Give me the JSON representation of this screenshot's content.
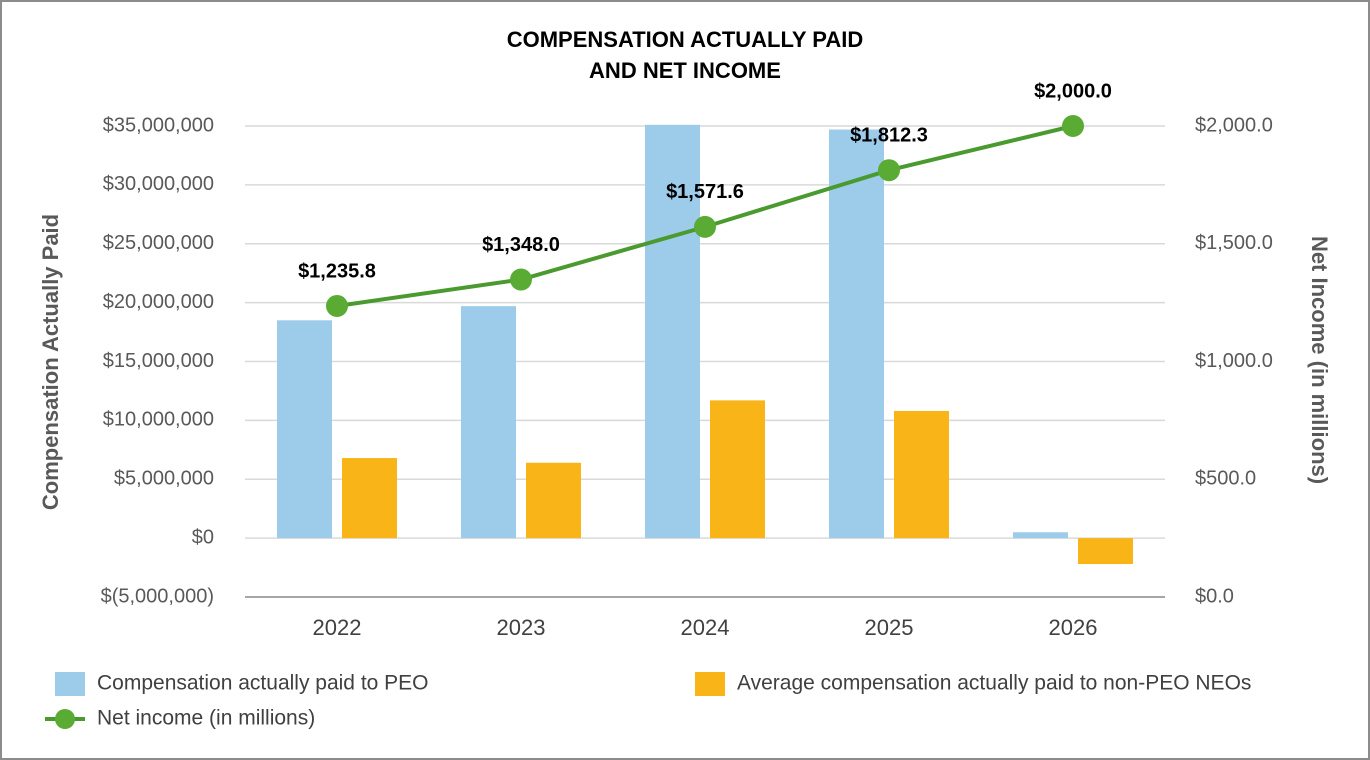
{
  "chart_data": {
    "type": "bar",
    "title": [
      "COMPENSATION ACTUALLY PAID",
      "AND NET INCOME"
    ],
    "y_label": "Compensation Actually Paid",
    "y2_label": "Net Income (in millions)",
    "categories": [
      "2022",
      "2023",
      "2024",
      "2025",
      "2026"
    ],
    "series": [
      {
        "name": "Compensation actually paid to PEO",
        "type": "bar",
        "color": "#9dcbea",
        "values": [
          18500000,
          19700000,
          35100000,
          34700000,
          500000
        ]
      },
      {
        "name": "Average compensation actually paid to non-PEO NEOs",
        "type": "bar",
        "color": "#f9b517",
        "values": [
          6800000,
          6400000,
          11700000,
          10800000,
          -2200000
        ]
      },
      {
        "name": "Net income (in millions)",
        "type": "line",
        "axis": "y2",
        "color": "#4a9a2f",
        "values": [
          1235.8,
          1348.0,
          1571.6,
          1812.3,
          2000.0
        ],
        "value_labels": [
          "$1,235.8",
          "$1,348.0",
          "$1,571.6",
          "$1,812.3",
          "$2,000.0"
        ]
      }
    ],
    "ylim": [
      -5000000,
      35000000
    ],
    "yticks": [
      {
        "value": -5000000,
        "label": "$(5,000,000)"
      },
      {
        "value": 0,
        "label": "$0"
      },
      {
        "value": 5000000,
        "label": "$5,000,000"
      },
      {
        "value": 10000000,
        "label": "$10,000,000"
      },
      {
        "value": 15000000,
        "label": "$15,000,000"
      },
      {
        "value": 20000000,
        "label": "$20,000,000"
      },
      {
        "value": 25000000,
        "label": "$25,000,000"
      },
      {
        "value": 30000000,
        "label": "$30,000,000"
      },
      {
        "value": 35000000,
        "label": "$35,000,000"
      }
    ],
    "y2lim": [
      0,
      2000
    ],
    "y2ticks": [
      {
        "value": 0,
        "label": "$0.0"
      },
      {
        "value": 500,
        "label": "$500.0"
      },
      {
        "value": 1000,
        "label": "$1,000.0"
      },
      {
        "value": 1500,
        "label": "$1,500.0"
      },
      {
        "value": 2000,
        "label": "$2,000.0"
      }
    ],
    "grid": true,
    "legend": "bottom"
  }
}
